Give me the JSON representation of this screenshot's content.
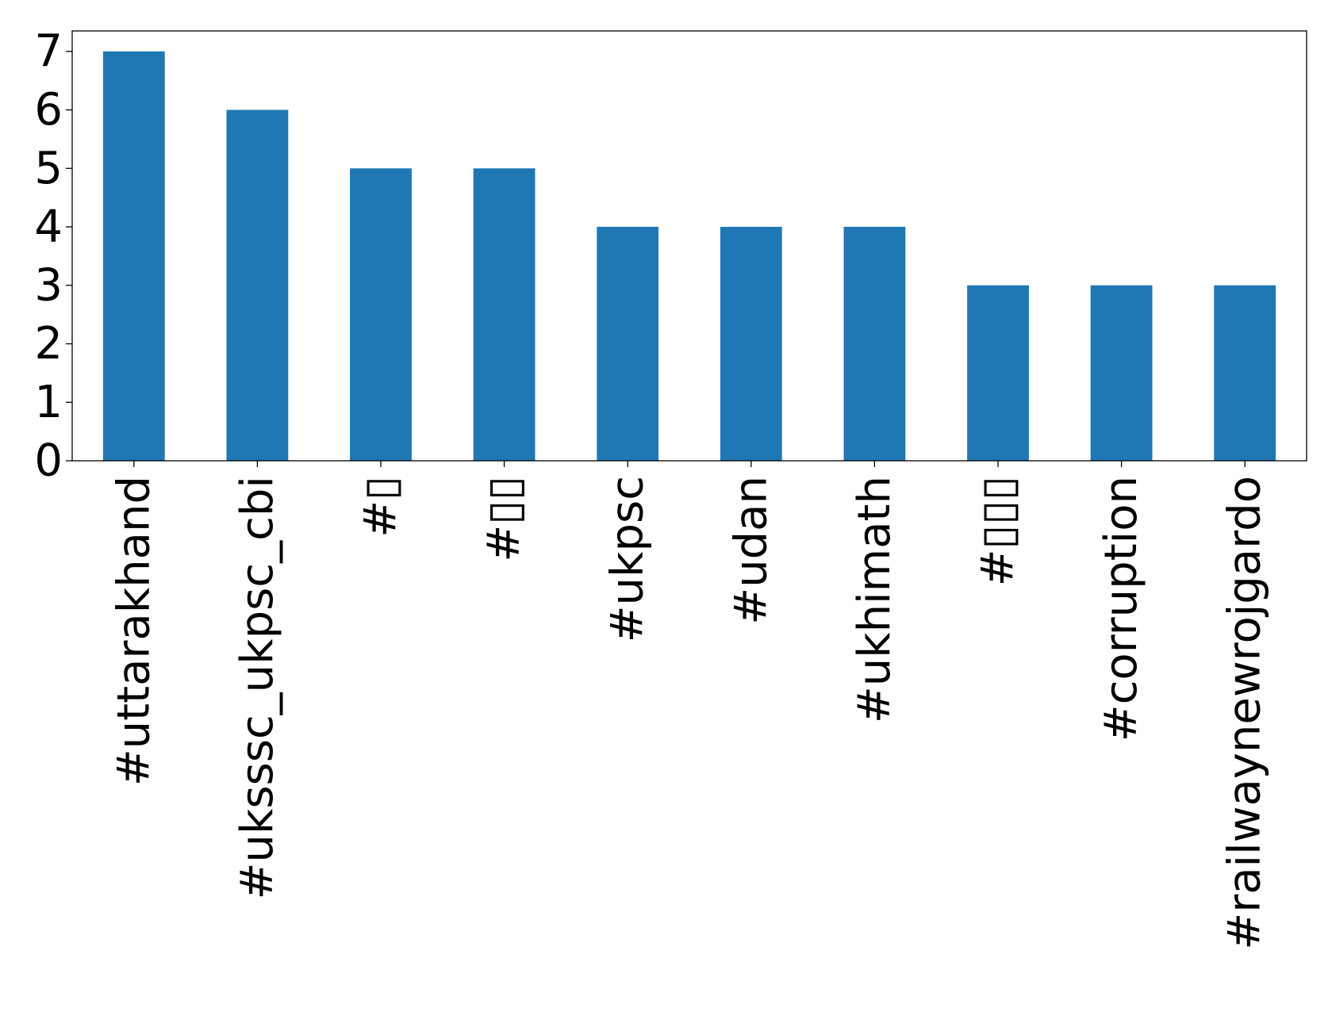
{
  "chart_data": {
    "type": "bar",
    "categories": [
      "#uttarakhand",
      "#uksssc_ukpsc_cbi",
      "#▯",
      "#▯▯",
      "#ukpsc",
      "#udan",
      "#ukhimath",
      "#▯▯▯",
      "#corruption",
      "#railwaynewrojgardo"
    ],
    "values": [
      7,
      6,
      5,
      5,
      4,
      4,
      4,
      3,
      3,
      3
    ],
    "title": "",
    "xlabel": "",
    "ylabel": "",
    "ylim": [
      0,
      7.35
    ],
    "yticks": [
      0,
      1,
      2,
      3,
      4,
      5,
      6,
      7
    ],
    "bar_color": "#1f77b4",
    "grid": false,
    "legend": "none"
  }
}
